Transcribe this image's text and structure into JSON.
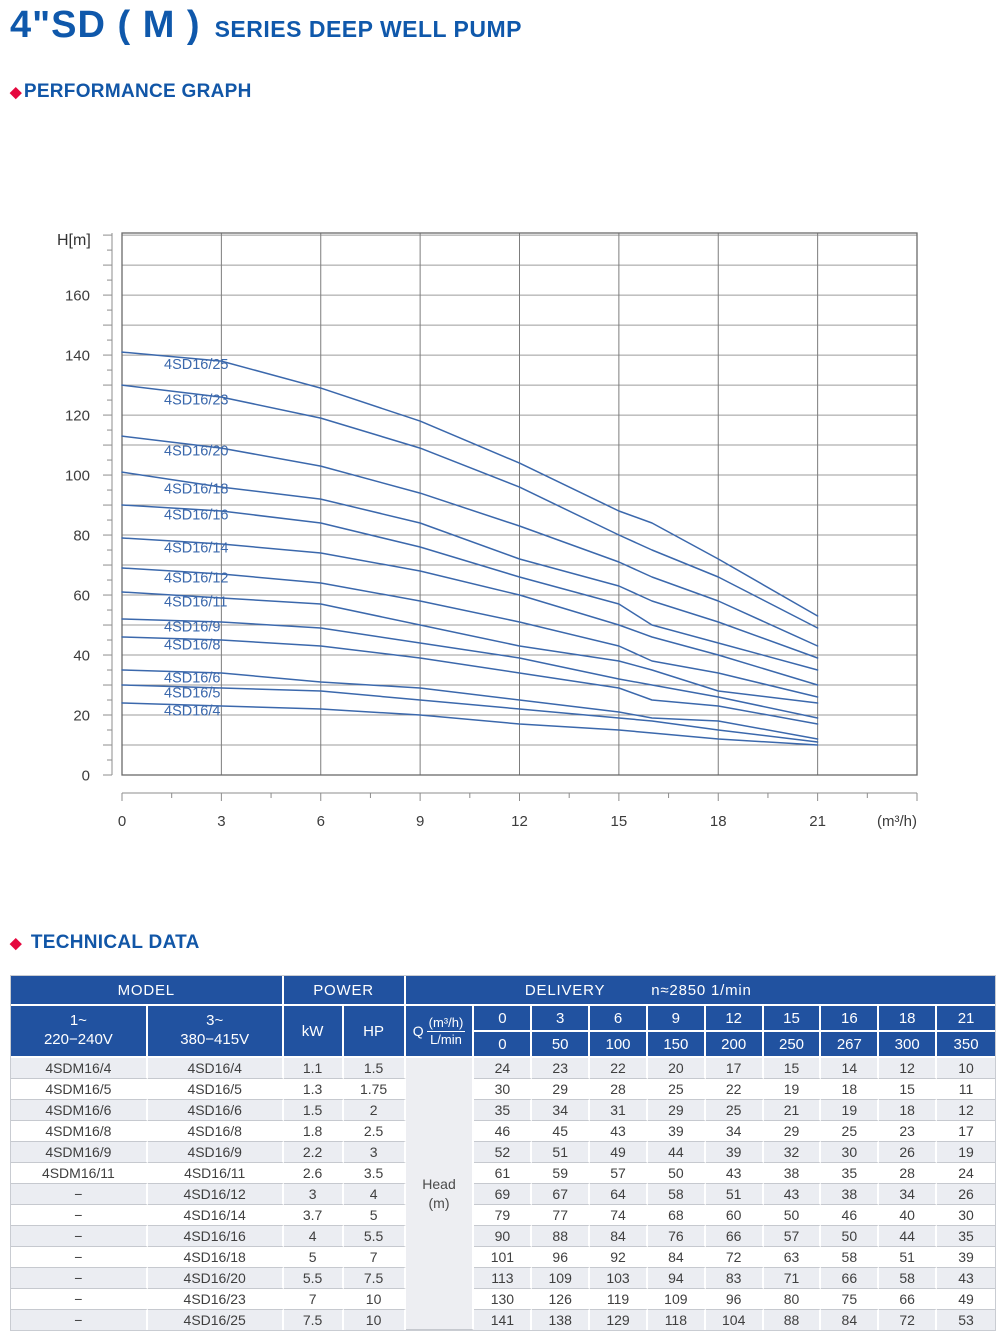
{
  "page": {
    "title_main": "4\"SD ( M )",
    "title_sub": "SERIES DEEP WELL PUMP",
    "sections": {
      "performance": "PERFORMANCE GRAPH",
      "technical": "TECHNICAL DATA"
    },
    "colors": {
      "title_blue": "#0f58ab",
      "heading_blue": "#1156a7",
      "accent_red": "#e5083e",
      "table_header_blue": "#2152a0",
      "curve_blue": "#3b68ac",
      "row_stripe": "#ebedf2"
    }
  },
  "chart_data": {
    "type": "line",
    "title": "",
    "ylabel": "H[m]",
    "xlabel": "(m³/h)",
    "x": [
      0,
      3,
      6,
      9,
      12,
      15,
      16,
      18,
      21
    ],
    "x_ticks": [
      0,
      3,
      6,
      9,
      12,
      15,
      18,
      21
    ],
    "y_ticks": [
      0,
      20,
      40,
      60,
      80,
      100,
      120,
      140,
      160
    ],
    "xlim": [
      0,
      24
    ],
    "ylim": [
      0,
      180.7
    ],
    "grid": true,
    "legend_position": "inline-labels",
    "series": [
      {
        "name": "4SD16/25",
        "values": [
          141,
          138,
          129,
          118,
          104,
          88,
          84,
          72,
          53
        ]
      },
      {
        "name": "4SD16/23",
        "values": [
          130,
          126,
          119,
          109,
          96,
          80,
          75,
          66,
          49
        ]
      },
      {
        "name": "4SD16/20",
        "values": [
          113,
          109,
          103,
          94,
          83,
          71,
          66,
          58,
          43
        ]
      },
      {
        "name": "4SD16/18",
        "values": [
          101,
          96,
          92,
          84,
          72,
          63,
          58,
          51,
          39
        ]
      },
      {
        "name": "4SD16/16",
        "values": [
          90,
          88,
          84,
          76,
          66,
          57,
          50,
          44,
          35
        ]
      },
      {
        "name": "4SD16/14",
        "values": [
          79,
          77,
          74,
          68,
          60,
          50,
          46,
          40,
          30
        ]
      },
      {
        "name": "4SD16/12",
        "values": [
          69,
          67,
          64,
          58,
          51,
          43,
          38,
          34,
          26
        ]
      },
      {
        "name": "4SD16/11",
        "values": [
          61,
          59,
          57,
          50,
          43,
          38,
          35,
          28,
          24
        ]
      },
      {
        "name": "4SD16/9",
        "values": [
          52,
          51,
          49,
          44,
          39,
          32,
          30,
          26,
          19
        ]
      },
      {
        "name": "4SD16/8",
        "values": [
          46,
          45,
          43,
          39,
          34,
          29,
          25,
          23,
          17
        ]
      },
      {
        "name": "4SD16/6",
        "values": [
          35,
          34,
          31,
          29,
          25,
          21,
          19,
          18,
          12
        ]
      },
      {
        "name": "4SD16/5",
        "values": [
          30,
          29,
          28,
          25,
          22,
          19,
          18,
          15,
          11
        ]
      },
      {
        "name": "4SD16/4",
        "values": [
          24,
          23,
          22,
          20,
          17,
          15,
          14,
          12,
          10
        ]
      }
    ]
  },
  "table": {
    "header": {
      "model": "MODEL",
      "power": "POWER",
      "delivery": "DELIVERY",
      "speed": "n≈2850 1/min",
      "col_1ph_line1": "1~",
      "col_1ph_line2": "220−240V",
      "col_3ph_line1": "3~",
      "col_3ph_line2": "380−415V",
      "kw": "kW",
      "hp": "HP",
      "q": "Q",
      "q_num": "(m³/h)",
      "q_den": "L/min",
      "flows_m3h": [
        "0",
        "3",
        "6",
        "9",
        "12",
        "15",
        "16",
        "18",
        "21"
      ],
      "flows_lmin": [
        "0",
        "50",
        "100",
        "150",
        "200",
        "250",
        "267",
        "300",
        "350"
      ]
    },
    "head_cell": {
      "line1": "Head",
      "line2": "(m)"
    },
    "rows": [
      {
        "model1": "4SDM16/4",
        "model3": "4SD16/4",
        "kw": "1.1",
        "hp": "1.5",
        "heads": [
          "24",
          "23",
          "22",
          "20",
          "17",
          "15",
          "14",
          "12",
          "10"
        ]
      },
      {
        "model1": "4SDM16/5",
        "model3": "4SD16/5",
        "kw": "1.3",
        "hp": "1.75",
        "heads": [
          "30",
          "29",
          "28",
          "25",
          "22",
          "19",
          "18",
          "15",
          "11"
        ]
      },
      {
        "model1": "4SDM16/6",
        "model3": "4SD16/6",
        "kw": "1.5",
        "hp": "2",
        "heads": [
          "35",
          "34",
          "31",
          "29",
          "25",
          "21",
          "19",
          "18",
          "12"
        ]
      },
      {
        "model1": "4SDM16/8",
        "model3": "4SD16/8",
        "kw": "1.8",
        "hp": "2.5",
        "heads": [
          "46",
          "45",
          "43",
          "39",
          "34",
          "29",
          "25",
          "23",
          "17"
        ]
      },
      {
        "model1": "4SDM16/9",
        "model3": "4SD16/9",
        "kw": "2.2",
        "hp": "3",
        "heads": [
          "52",
          "51",
          "49",
          "44",
          "39",
          "32",
          "30",
          "26",
          "19"
        ]
      },
      {
        "model1": "4SDM16/11",
        "model3": "4SD16/11",
        "kw": "2.6",
        "hp": "3.5",
        "heads": [
          "61",
          "59",
          "57",
          "50",
          "43",
          "38",
          "35",
          "28",
          "24"
        ]
      },
      {
        "model1": "−",
        "model3": "4SD16/12",
        "kw": "3",
        "hp": "4",
        "heads": [
          "69",
          "67",
          "64",
          "58",
          "51",
          "43",
          "38",
          "34",
          "26"
        ]
      },
      {
        "model1": "−",
        "model3": "4SD16/14",
        "kw": "3.7",
        "hp": "5",
        "heads": [
          "79",
          "77",
          "74",
          "68",
          "60",
          "50",
          "46",
          "40",
          "30"
        ]
      },
      {
        "model1": "−",
        "model3": "4SD16/16",
        "kw": "4",
        "hp": "5.5",
        "heads": [
          "90",
          "88",
          "84",
          "76",
          "66",
          "57",
          "50",
          "44",
          "35"
        ]
      },
      {
        "model1": "−",
        "model3": "4SD16/18",
        "kw": "5",
        "hp": "7",
        "heads": [
          "101",
          "96",
          "92",
          "84",
          "72",
          "63",
          "58",
          "51",
          "39"
        ]
      },
      {
        "model1": "−",
        "model3": "4SD16/20",
        "kw": "5.5",
        "hp": "7.5",
        "heads": [
          "113",
          "109",
          "103",
          "94",
          "83",
          "71",
          "66",
          "58",
          "43"
        ]
      },
      {
        "model1": "−",
        "model3": "4SD16/23",
        "kw": "7",
        "hp": "10",
        "heads": [
          "130",
          "126",
          "119",
          "109",
          "96",
          "80",
          "75",
          "66",
          "49"
        ]
      },
      {
        "model1": "−",
        "model3": "4SD16/25",
        "kw": "7.5",
        "hp": "10",
        "heads": [
          "141",
          "138",
          "129",
          "118",
          "104",
          "88",
          "84",
          "72",
          "53"
        ]
      }
    ]
  }
}
